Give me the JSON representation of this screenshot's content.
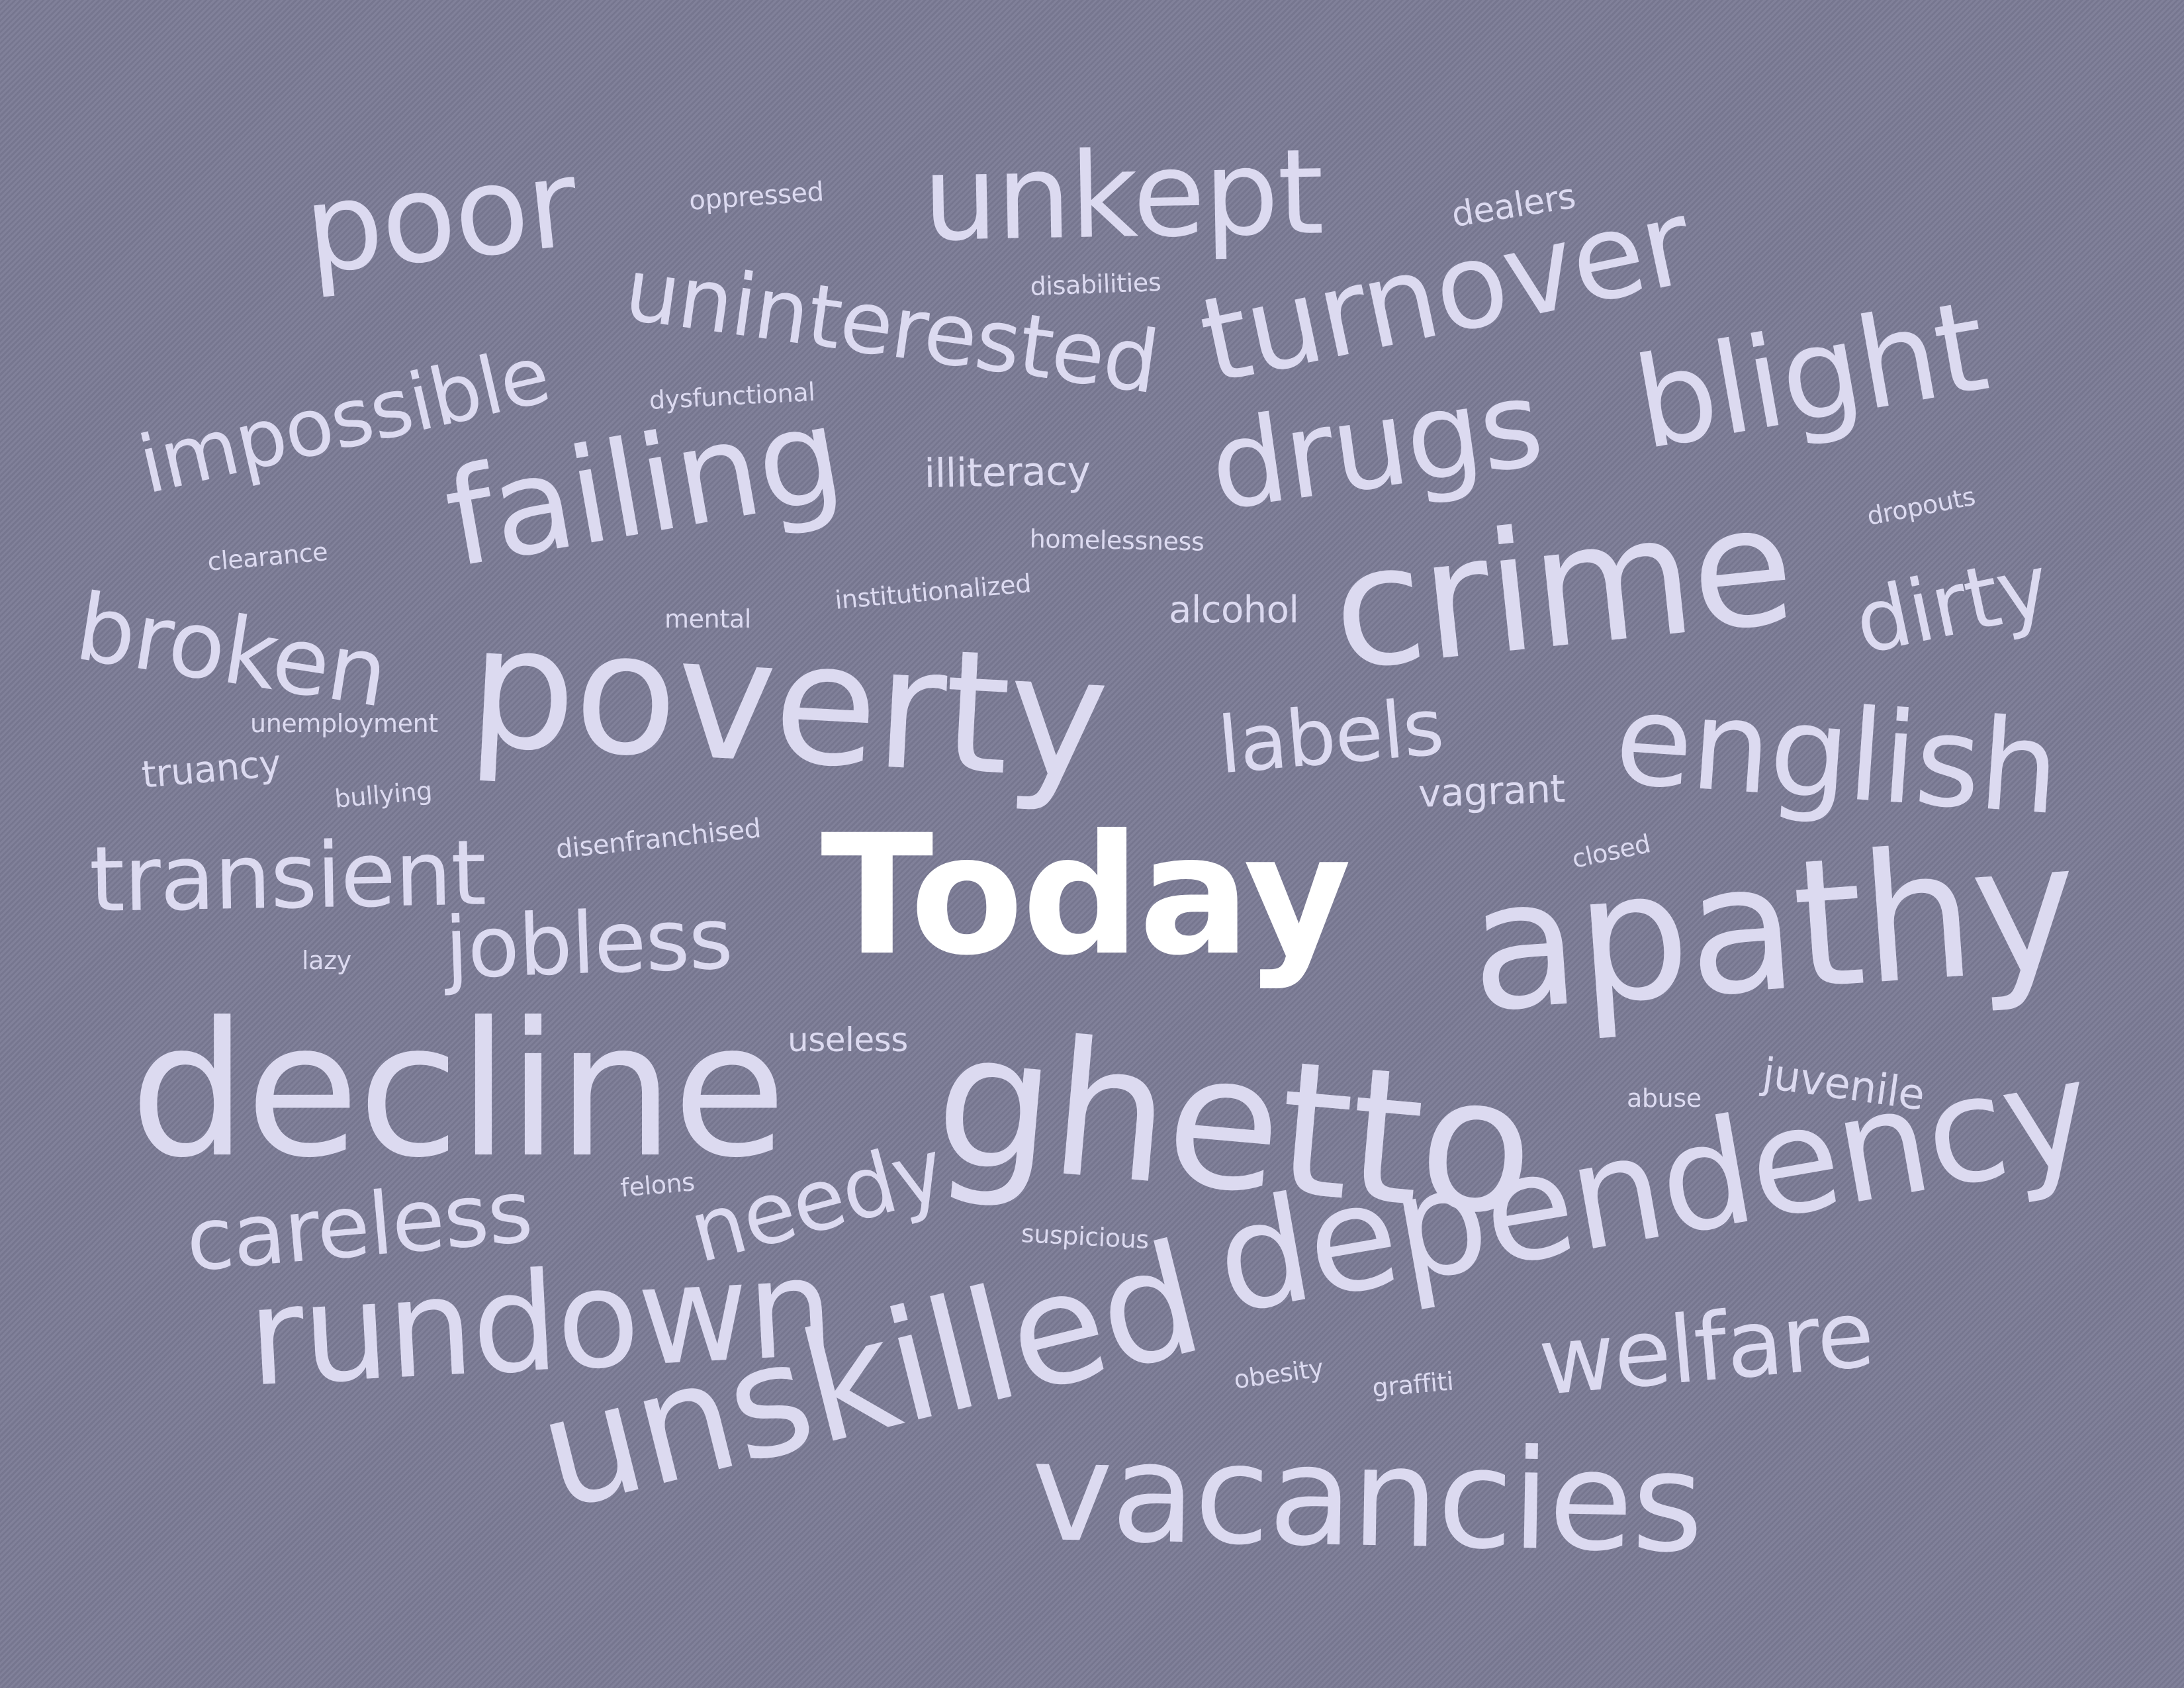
{
  "colors": {
    "background": "#7a7a94",
    "word": "#dcdaf0",
    "highlight": "#ffffff"
  },
  "words": {
    "poor": "poor",
    "oppressed": "oppressed",
    "unkept": "unkept",
    "dealers": "dealers",
    "uninterested": "uninterested",
    "disabilities": "disabilities",
    "turnover": "turnover",
    "impossible": "impossible",
    "dysfunctional": "dysfunctional",
    "drugs": "drugs",
    "blight": "blight",
    "failing": "failing",
    "illiteracy": "illiteracy",
    "homelessness": "homelessness",
    "dropouts": "dropouts",
    "clearance": "clearance",
    "crime": "crime",
    "institutionalized": "institutionalized",
    "broken": "broken",
    "mental": "mental",
    "alcohol": "alcohol",
    "dirty": "dirty",
    "poverty": "poverty",
    "unemployment": "unemployment",
    "labels": "labels",
    "english": "english",
    "truancy": "truancy",
    "bullying": "bullying",
    "vagrant": "vagrant",
    "disenfranchised": "disenfranchised",
    "closed": "closed",
    "transient": "transient",
    "today": "Today",
    "jobless": "jobless",
    "lazy": "lazy",
    "apathy": "apathy",
    "useless": "useless",
    "decline": "decline",
    "ghetto": "ghetto",
    "abuse": "abuse",
    "juvenile": "juvenile",
    "felons": "felons",
    "needy": "needy",
    "suspicious": "suspicious",
    "careless": "careless",
    "dependency": "dependency",
    "rundown": "rundown",
    "obesity": "obesity",
    "graffiti": "graffiti",
    "welfare": "welfare",
    "unskilled": "unskilled",
    "vacancies": "vacancies"
  }
}
